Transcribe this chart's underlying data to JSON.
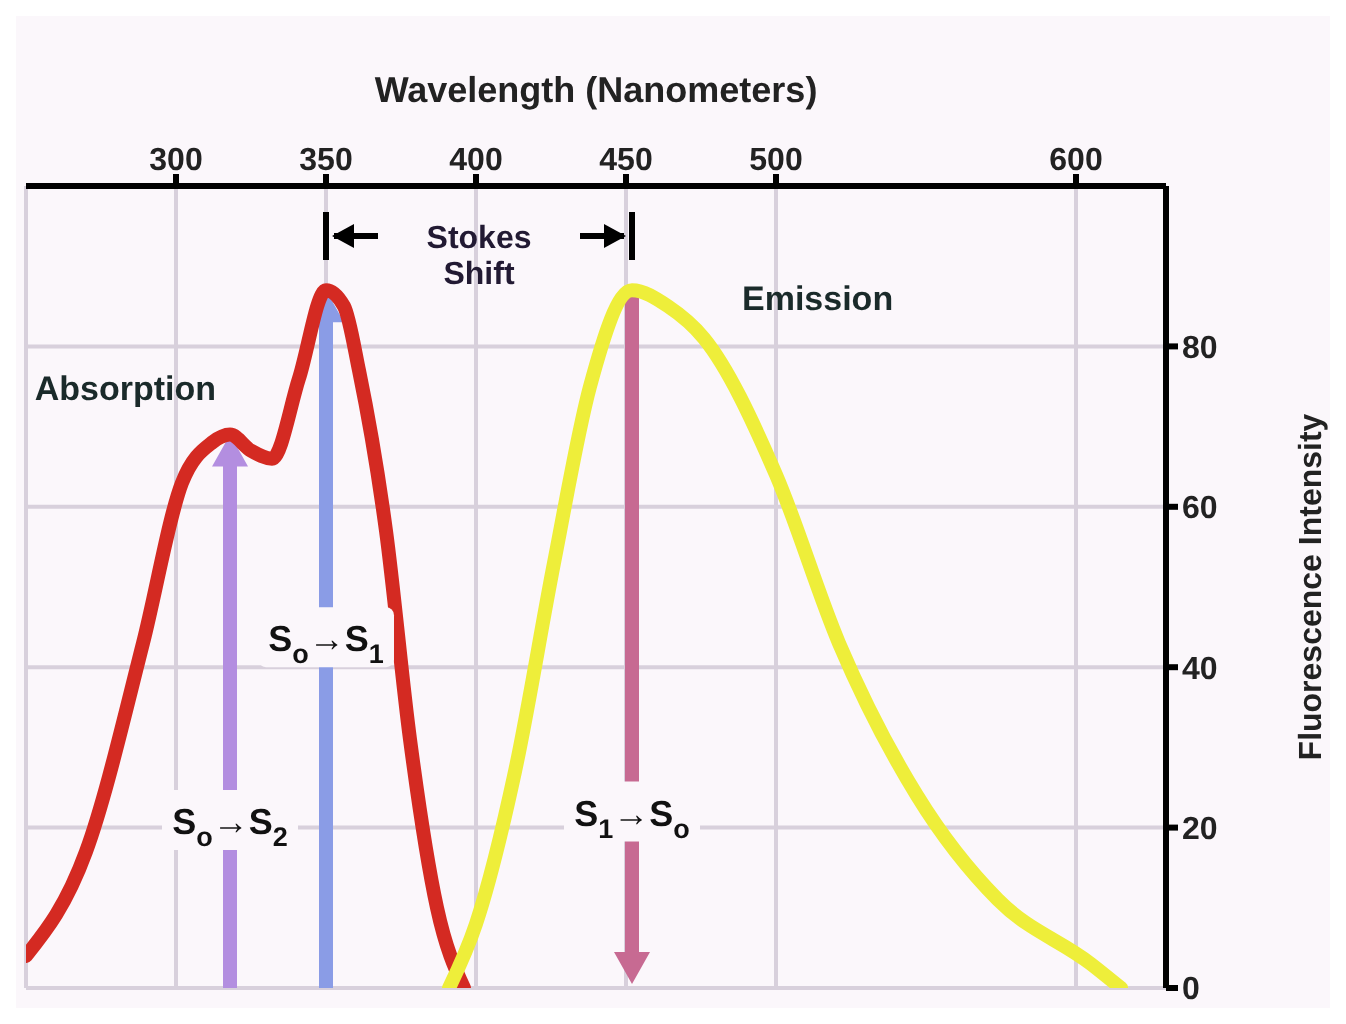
{
  "chart_data": {
    "type": "line",
    "xlabel": "Wavelength (Nanometers)",
    "ylabel": "Fluorescence Intensity",
    "xlim": [
      250,
      630
    ],
    "xticks": [
      300,
      350,
      400,
      450,
      500,
      600
    ],
    "ylim": [
      0,
      100
    ],
    "yticks": [
      0,
      20,
      40,
      60,
      80
    ],
    "grid": true,
    "legend": false,
    "marker": "none",
    "line_style": "solid",
    "series": [
      {
        "name": "Absorption",
        "color": "#d42a22",
        "x": [
          250,
          270,
          289,
          302,
          312,
          318,
          325,
          332,
          341,
          350,
          356,
          361,
          370,
          378,
          387,
          396
        ],
        "values": [
          4,
          17,
          43,
          63,
          68,
          69,
          67,
          66,
          76,
          87,
          85,
          77,
          57,
          31,
          10,
          0
        ]
      },
      {
        "name": "Emission",
        "color": "#eeee3a",
        "x": [
          391,
          400,
          413,
          426,
          438,
          452,
          464,
          476,
          500,
          521,
          547,
          574,
          605,
          615
        ],
        "values": [
          0,
          8,
          27,
          53,
          75,
          87,
          85,
          81,
          64,
          43,
          24,
          11,
          3,
          0
        ]
      }
    ],
    "ref_lines": [
      {
        "axis": "x",
        "value": 318,
        "label": "S$_{o}$→S$_{2}$",
        "color": "#b38ee0"
      },
      {
        "axis": "x",
        "value": 350,
        "label": "S$_{o}$→S$_{1}$",
        "color": "#8a9ce6"
      },
      {
        "axis": "x",
        "value": 452,
        "label": "S$_{1}$→S$_{o}$",
        "color": "#c76a92"
      }
    ],
    "annotations": [
      "Stokes Shift"
    ]
  }
}
